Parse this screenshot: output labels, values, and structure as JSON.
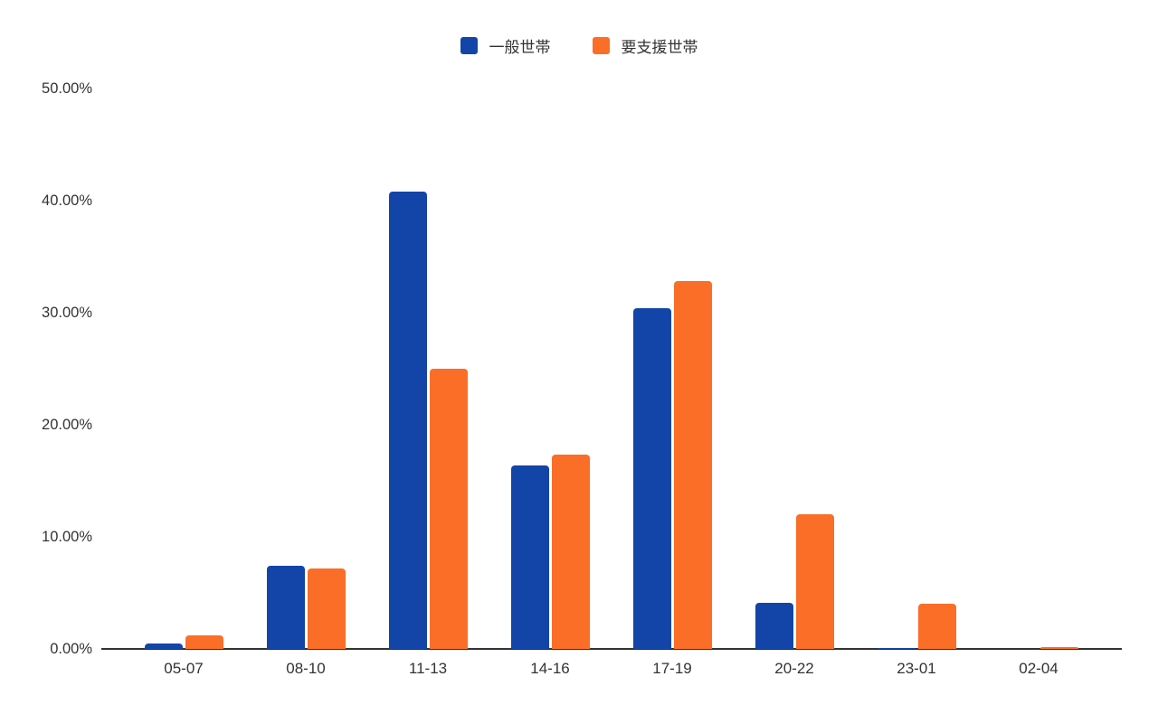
{
  "chart_data": {
    "type": "bar",
    "title": "",
    "xlabel": "",
    "ylabel": "",
    "categories": [
      "05-07",
      "08-10",
      "11-13",
      "14-16",
      "17-19",
      "20-22",
      "23-01",
      "02-04"
    ],
    "series": [
      {
        "name": "一般世帯",
        "color": "#1345a8",
        "values": [
          0.5,
          7.4,
          40.8,
          16.4,
          30.4,
          4.1,
          0.1,
          0.0
        ]
      },
      {
        "name": "要支援世帯",
        "color": "#fa6e28",
        "values": [
          1.2,
          7.2,
          25.0,
          17.3,
          32.8,
          12.0,
          4.0,
          0.15
        ]
      }
    ],
    "y_ticks": [
      "50.00%",
      "40.00%",
      "30.00%",
      "20.00%",
      "10.00%",
      "0.00%"
    ],
    "ylim": [
      0,
      50
    ],
    "grid": false,
    "legend_position": "top",
    "axis_color": "#333333",
    "text_color": "#333333",
    "background": "#ffffff"
  }
}
